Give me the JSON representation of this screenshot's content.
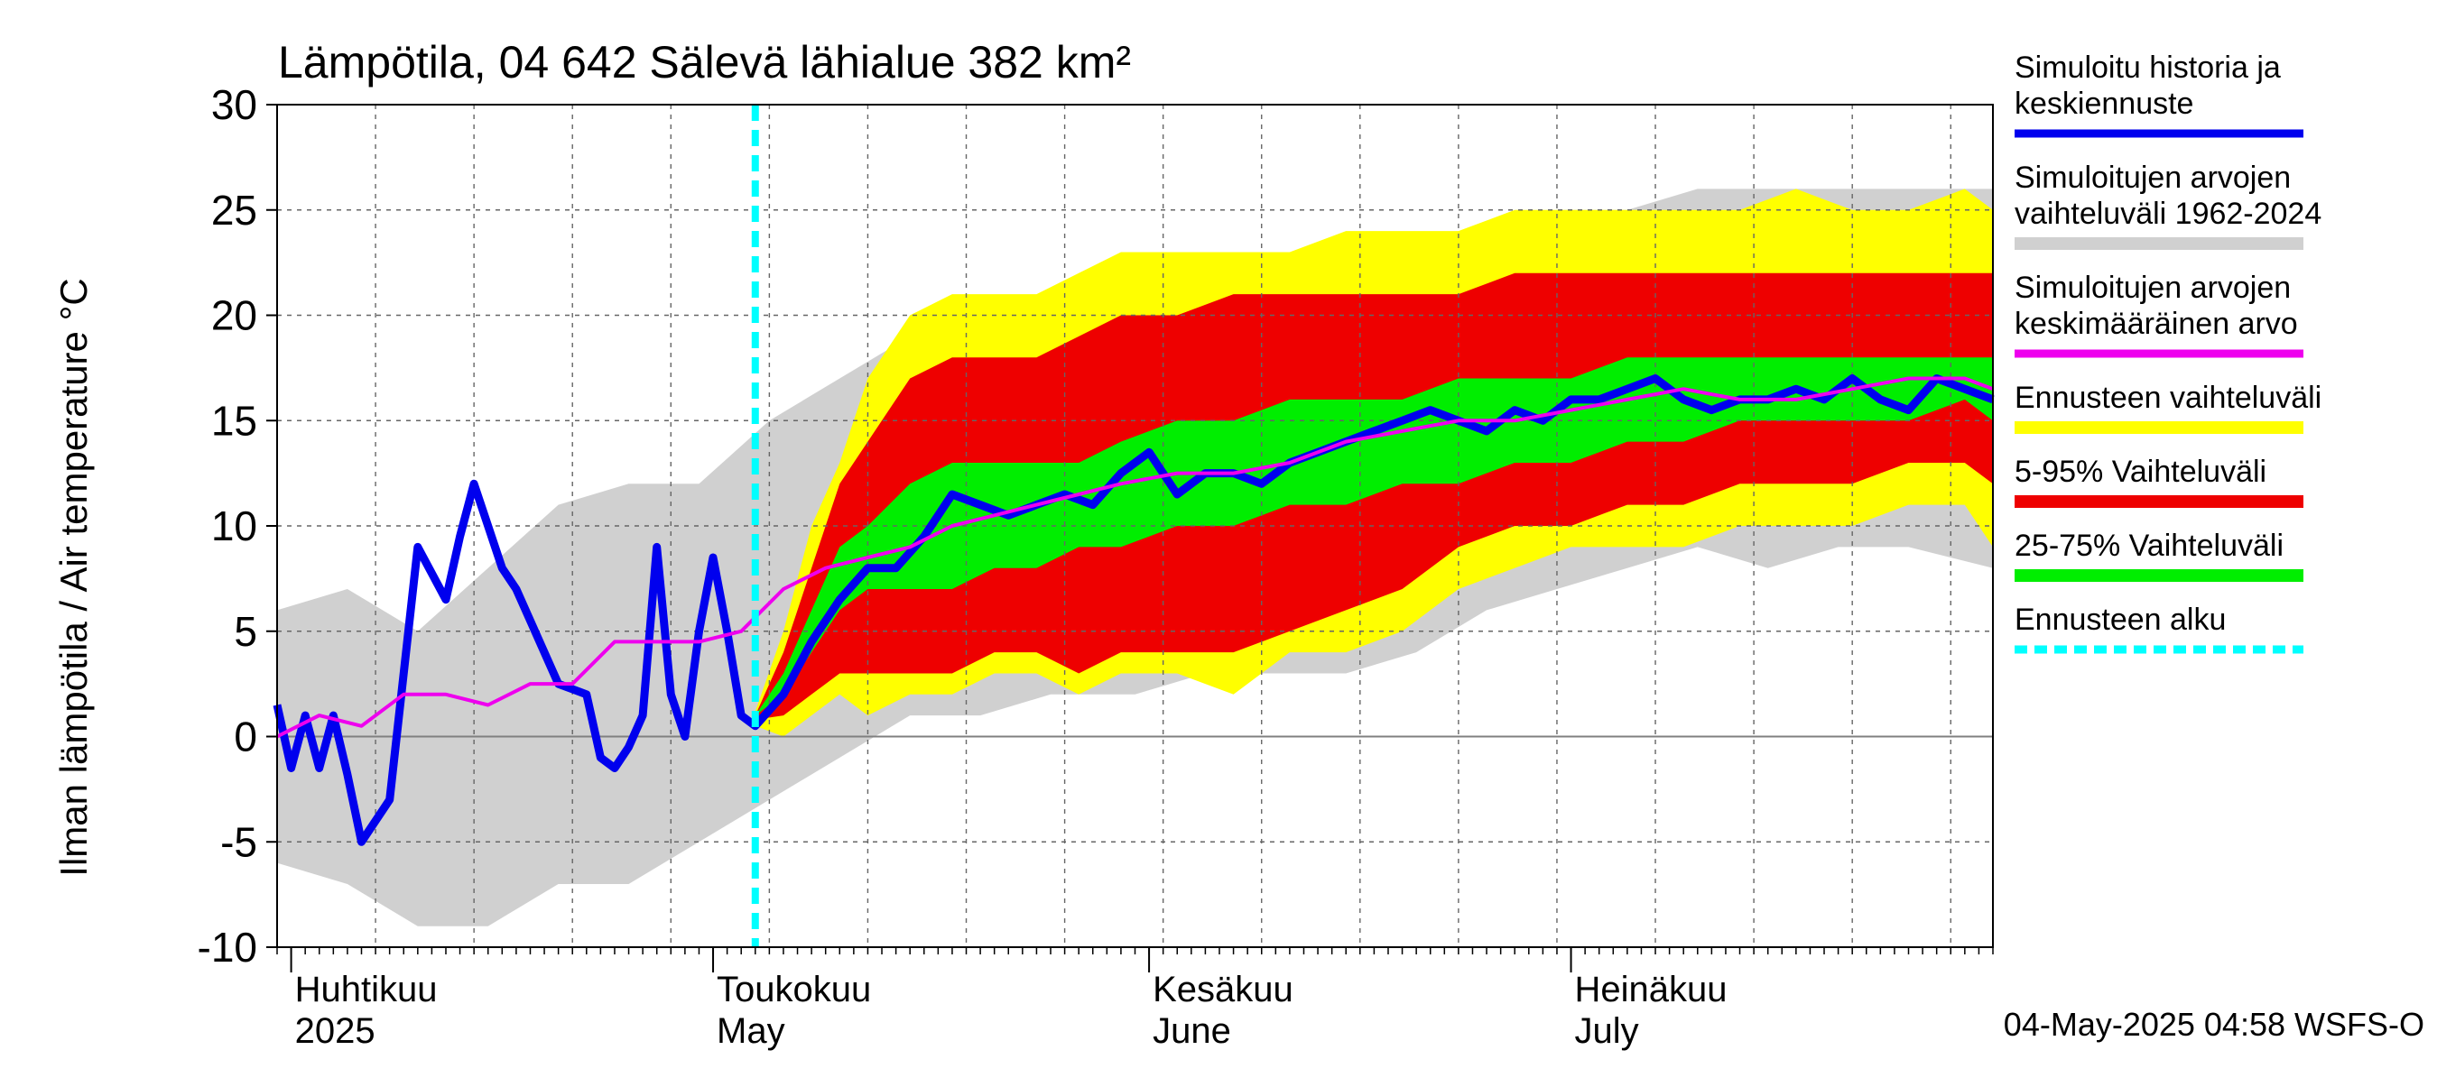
{
  "chart_data": {
    "type": "area",
    "title": "Lämpötila, 04 642 Sälevä lähialue 382 km²",
    "ylabel": "Ilman lämpötila / Air temperature   °C",
    "ylim": [
      -10,
      30
    ],
    "yticks": [
      -10,
      -5,
      0,
      5,
      10,
      15,
      20,
      25,
      30
    ],
    "xlim": [
      "2025-03-31",
      "2025-07-31"
    ],
    "month_labels": [
      {
        "date": "2025-04-01",
        "fi": "Huhtikuu",
        "en": "2025"
      },
      {
        "date": "2025-05-01",
        "fi": "Toukokuu",
        "en": "May"
      },
      {
        "date": "2025-06-01",
        "fi": "Kesäkuu",
        "en": "June"
      },
      {
        "date": "2025-07-01",
        "fi": "Heinäkuu",
        "en": "July"
      }
    ],
    "forecast_start": "2025-05-04",
    "grid": true,
    "legend_position": "right",
    "legend": [
      {
        "label": "Simuloitu historia ja\nkeskiennuste",
        "color": "#0000ee",
        "kind": "line"
      },
      {
        "label": "Simuloitujen arvojen\nvaihteluväli 1962-2024",
        "color": "#d0d0d0",
        "kind": "band"
      },
      {
        "label": "Simuloitujen arvojen\nkeskimääräinen arvo",
        "color": "#ee00ee",
        "kind": "line"
      },
      {
        "label": "Ennusteen vaihteluväli",
        "color": "#ffff00",
        "kind": "band"
      },
      {
        "label": "5-95% Vaihteluväli",
        "color": "#ee0000",
        "kind": "band"
      },
      {
        "label": "25-75% Vaihteluväli",
        "color": "#00ee00",
        "kind": "band"
      },
      {
        "label": "Ennusteen alku",
        "color": "#00ffff",
        "kind": "dash"
      }
    ],
    "history_range": {
      "x": [
        "2025-03-31",
        "2025-04-05",
        "2025-04-10",
        "2025-04-15",
        "2025-04-20",
        "2025-04-25",
        "2025-04-30",
        "2025-05-05",
        "2025-05-10",
        "2025-05-15",
        "2025-05-20",
        "2025-05-25",
        "2025-05-31",
        "2025-06-05",
        "2025-06-10",
        "2025-06-15",
        "2025-06-20",
        "2025-06-25",
        "2025-06-30",
        "2025-07-05",
        "2025-07-10",
        "2025-07-15",
        "2025-07-20",
        "2025-07-25",
        "2025-07-31"
      ],
      "low": [
        -6,
        -7,
        -9,
        -9,
        -7,
        -7,
        -5,
        -3,
        -1,
        1,
        1,
        2,
        2,
        3,
        3,
        3,
        4,
        6,
        7,
        8,
        9,
        8,
        9,
        9,
        8
      ],
      "high": [
        6,
        7,
        5,
        8,
        11,
        12,
        12,
        15,
        17,
        19,
        20,
        21,
        21,
        21,
        22,
        21,
        22,
        24,
        25,
        25,
        26,
        26,
        26,
        26,
        26
      ]
    },
    "forecast_bands": {
      "x": [
        "2025-05-04",
        "2025-05-06",
        "2025-05-08",
        "2025-05-10",
        "2025-05-12",
        "2025-05-15",
        "2025-05-18",
        "2025-05-21",
        "2025-05-24",
        "2025-05-27",
        "2025-05-30",
        "2025-06-03",
        "2025-06-07",
        "2025-06-11",
        "2025-06-15",
        "2025-06-19",
        "2025-06-23",
        "2025-06-27",
        "2025-07-01",
        "2025-07-05",
        "2025-07-09",
        "2025-07-13",
        "2025-07-17",
        "2025-07-21",
        "2025-07-25",
        "2025-07-29",
        "2025-07-31"
      ],
      "min": [
        0.5,
        0,
        1,
        2,
        1,
        2,
        2,
        3,
        3,
        2,
        3,
        3,
        2,
        4,
        4,
        5,
        7,
        8,
        9,
        9,
        9,
        10,
        10,
        10,
        11,
        11,
        9
      ],
      "p5": [
        0.8,
        1,
        2,
        3,
        3,
        3,
        3,
        4,
        4,
        3,
        4,
        4,
        4,
        5,
        6,
        7,
        9,
        10,
        10,
        11,
        11,
        12,
        12,
        12,
        13,
        13,
        12
      ],
      "p25": [
        1,
        2,
        4,
        6,
        7,
        7,
        7,
        8,
        8,
        9,
        9,
        10,
        10,
        11,
        11,
        12,
        12,
        13,
        13,
        14,
        14,
        15,
        15,
        15,
        15,
        16,
        15
      ],
      "p75": [
        1,
        3,
        6,
        9,
        10,
        12,
        13,
        13,
        13,
        13,
        14,
        15,
        15,
        16,
        16,
        16,
        17,
        17,
        17,
        18,
        18,
        18,
        18,
        18,
        18,
        18,
        18
      ],
      "p95": [
        1,
        4,
        8,
        12,
        14,
        17,
        18,
        18,
        18,
        19,
        20,
        20,
        21,
        21,
        21,
        21,
        21,
        22,
        22,
        22,
        22,
        22,
        22,
        22,
        22,
        22,
        22
      ],
      "max": [
        1.2,
        5,
        10,
        13,
        17,
        20,
        21,
        21,
        21,
        22,
        23,
        23,
        23,
        23,
        24,
        24,
        24,
        25,
        25,
        25,
        25,
        25,
        26,
        25,
        25,
        26,
        25
      ]
    },
    "series": [
      {
        "name": "Simuloitu historia ja keskiennuste",
        "x": [
          "2025-03-31",
          "2025-04-01",
          "2025-04-02",
          "2025-04-03",
          "2025-04-04",
          "2025-04-05",
          "2025-04-06",
          "2025-04-08",
          "2025-04-10",
          "2025-04-12",
          "2025-04-13",
          "2025-04-14",
          "2025-04-16",
          "2025-04-17",
          "2025-04-18",
          "2025-04-20",
          "2025-04-22",
          "2025-04-23",
          "2025-04-24",
          "2025-04-25",
          "2025-04-26",
          "2025-04-27",
          "2025-04-28",
          "2025-04-29",
          "2025-04-30",
          "2025-05-01",
          "2025-05-02",
          "2025-05-03",
          "2025-05-04",
          "2025-05-06",
          "2025-05-08",
          "2025-05-10",
          "2025-05-12",
          "2025-05-14",
          "2025-05-16",
          "2025-05-18",
          "2025-05-20",
          "2025-05-22",
          "2025-05-24",
          "2025-05-26",
          "2025-05-28",
          "2025-05-30",
          "2025-06-01",
          "2025-06-03",
          "2025-06-05",
          "2025-06-07",
          "2025-06-09",
          "2025-06-11",
          "2025-06-13",
          "2025-06-15",
          "2025-06-17",
          "2025-06-19",
          "2025-06-21",
          "2025-06-23",
          "2025-06-25",
          "2025-06-27",
          "2025-06-29",
          "2025-07-01",
          "2025-07-03",
          "2025-07-05",
          "2025-07-07",
          "2025-07-09",
          "2025-07-11",
          "2025-07-13",
          "2025-07-15",
          "2025-07-17",
          "2025-07-19",
          "2025-07-21",
          "2025-07-23",
          "2025-07-25",
          "2025-07-27",
          "2025-07-29",
          "2025-07-31"
        ],
        "y": [
          1.5,
          -1.5,
          1.0,
          -1.5,
          1.0,
          -1.8,
          -5.0,
          -3.0,
          9.0,
          6.5,
          9.5,
          12.0,
          8.0,
          7.0,
          5.5,
          2.5,
          2.0,
          -1.0,
          -1.5,
          -0.5,
          1.0,
          9.0,
          2.0,
          0.0,
          5.0,
          8.5,
          5.0,
          1.0,
          0.5,
          2.0,
          4.5,
          6.5,
          8.0,
          8.0,
          9.5,
          11.5,
          11.0,
          10.5,
          11.0,
          11.5,
          11.0,
          12.5,
          13.5,
          11.5,
          12.5,
          12.5,
          12.0,
          13.0,
          13.5,
          14.0,
          14.5,
          15.0,
          15.5,
          15.0,
          14.5,
          15.5,
          15.0,
          16.0,
          16.0,
          16.5,
          17.0,
          16.0,
          15.5,
          16.0,
          16.0,
          16.5,
          16.0,
          17.0,
          16.0,
          15.5,
          17.0,
          16.5,
          16.0
        ],
        "color": "#0000ee"
      },
      {
        "name": "Simuloitujen arvojen keskimääräinen arvo",
        "x": [
          "2025-03-31",
          "2025-04-03",
          "2025-04-06",
          "2025-04-09",
          "2025-04-12",
          "2025-04-15",
          "2025-04-18",
          "2025-04-21",
          "2025-04-24",
          "2025-04-27",
          "2025-04-30",
          "2025-05-03",
          "2025-05-06",
          "2025-05-09",
          "2025-05-12",
          "2025-05-15",
          "2025-05-18",
          "2025-05-21",
          "2025-05-24",
          "2025-05-27",
          "2025-05-30",
          "2025-06-03",
          "2025-06-07",
          "2025-06-11",
          "2025-06-15",
          "2025-06-19",
          "2025-06-23",
          "2025-06-27",
          "2025-07-01",
          "2025-07-05",
          "2025-07-09",
          "2025-07-13",
          "2025-07-17",
          "2025-07-21",
          "2025-07-25",
          "2025-07-29",
          "2025-07-31"
        ],
        "y": [
          0.0,
          1.0,
          0.5,
          2.0,
          2.0,
          1.5,
          2.5,
          2.5,
          4.5,
          4.5,
          4.5,
          5.0,
          7.0,
          8.0,
          8.5,
          9.0,
          10.0,
          10.5,
          11.0,
          11.5,
          12.0,
          12.5,
          12.5,
          13.0,
          14.0,
          14.5,
          15.0,
          15.0,
          15.5,
          16.0,
          16.5,
          16.0,
          16.0,
          16.5,
          17.0,
          17.0,
          16.5
        ],
        "color": "#ee00ee"
      }
    ],
    "footer": "04-May-2025 04:58 WSFS-O"
  }
}
